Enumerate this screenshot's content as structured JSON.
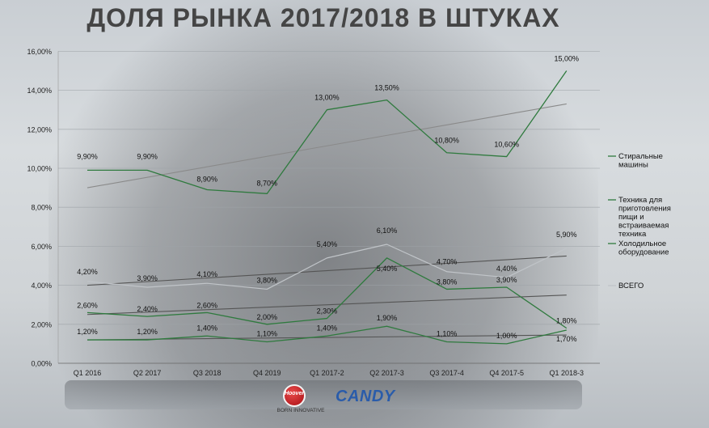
{
  "page": {
    "title": "ДОЛЯ РЫНКА 2017/2018 В ШТУКАХ"
  },
  "brand": {
    "hoover": "Hoover",
    "tagline": "BORN INNOVATIVE",
    "candy": "CANDY"
  },
  "chart_data": {
    "type": "line",
    "title": "ДОЛЯ РЫНКА 2017/2018 В ШТУКАХ",
    "categories": [
      "Q1 2016",
      "Q2 2017",
      "Q3 2018",
      "Q4 2019",
      "Q1 2017-2",
      "Q2 2017-3",
      "Q3 2017-4",
      "Q4 2017-5",
      "Q1 2018-3"
    ],
    "ylim": [
      0,
      16
    ],
    "yticks": [
      "0,00%",
      "2,00%",
      "4,00%",
      "6,00%",
      "8,00%",
      "10,00%",
      "12,00%",
      "14,00%",
      "16,00%"
    ],
    "grid": true,
    "legend_position": "right",
    "series": [
      {
        "name": "Стиральные машины",
        "color": "#2f7a3e",
        "values": [
          9.9,
          9.9,
          8.9,
          8.7,
          13.0,
          13.5,
          10.8,
          10.6,
          15.0
        ],
        "labels": [
          "9,90%",
          "9,90%",
          "8,90%",
          "8,70%",
          "13,00%",
          "13,50%",
          "10,80%",
          "10,60%",
          "15,00%"
        ]
      },
      {
        "name": "Техника для приготовления пищи и встраиваемая техника",
        "color": "#2f7a3e",
        "values": [
          2.6,
          2.4,
          2.6,
          2.0,
          2.3,
          5.4,
          3.8,
          3.9,
          1.8
        ],
        "labels": [
          "2,60%",
          "2,40%",
          "2,60%",
          "2,00%",
          "2,30%",
          "5,40%",
          "3,80%",
          "3,90%",
          "1,80%"
        ]
      },
      {
        "name": "Холодильное оборудование",
        "color": "#2f7a3e",
        "values": [
          1.2,
          1.2,
          1.4,
          1.1,
          1.4,
          1.9,
          1.1,
          1.0,
          1.7
        ],
        "labels": [
          "1,20%",
          "1,20%",
          "1,40%",
          "1,10%",
          "1,40%",
          "1,90%",
          "1,10%",
          "1,00%",
          "1,70%"
        ]
      },
      {
        "name": "ВСЕГО",
        "color": "#c0c4c8",
        "values": [
          4.2,
          3.9,
          4.1,
          3.8,
          5.4,
          6.1,
          4.7,
          4.4,
          5.9
        ],
        "labels": [
          "4,20%",
          "3,90%",
          "4,10%",
          "3,80%",
          "5,40%",
          "6,10%",
          "4,70%",
          "4,40%",
          "5,90%"
        ]
      }
    ],
    "trendlines": [
      {
        "series": "Стиральные машины",
        "color": "#8a8a8a",
        "start": 9.0,
        "end": 13.3
      },
      {
        "series": "ВСЕГО",
        "color": "#555555",
        "start": 4.0,
        "end": 5.5
      },
      {
        "series": "Техника для приготовления пищи и встраиваемая техника",
        "color": "#555555",
        "start": 2.5,
        "end": 3.5
      },
      {
        "series": "Холодильное оборудование",
        "color": "#555555",
        "start": 1.2,
        "end": 1.45
      }
    ]
  }
}
